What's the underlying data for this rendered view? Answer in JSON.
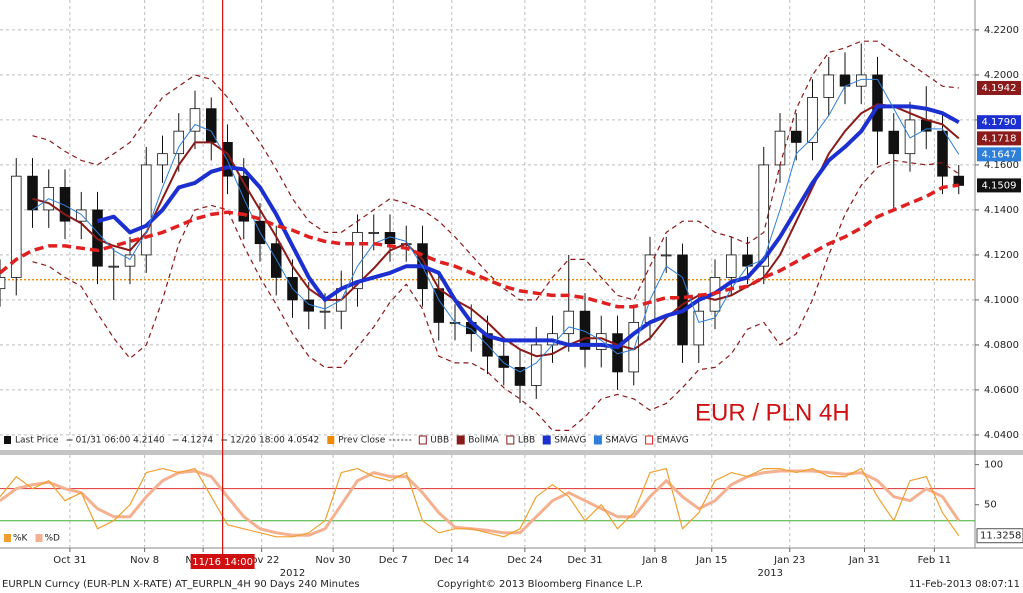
{
  "chart_data": [
    {
      "type": "candlestick",
      "name": "Last Price",
      "legend_notes": [
        "01/31 06:00 4.2140",
        "4.1274",
        "12/20 18:00 4.0542"
      ],
      "annotation": "EUR / PLN 4H",
      "x": [
        0,
        1,
        2,
        3,
        4,
        5,
        6,
        7,
        8,
        9,
        10,
        11,
        12,
        13,
        14,
        15,
        16,
        17,
        18,
        19,
        20,
        21,
        22,
        23,
        24,
        25,
        26,
        27,
        28,
        29,
        30,
        31,
        32,
        33,
        34,
        35,
        36,
        37,
        38,
        39,
        40,
        41,
        42,
        43,
        44,
        45,
        46,
        47,
        48,
        49,
        50,
        51,
        52,
        53,
        54,
        55,
        56,
        57,
        58,
        59
      ],
      "open": [
        4.105,
        4.11,
        4.155,
        4.14,
        4.15,
        4.135,
        4.14,
        4.115,
        4.115,
        4.12,
        4.16,
        4.165,
        4.175,
        4.185,
        4.17,
        4.155,
        4.135,
        4.125,
        4.11,
        4.1,
        4.095,
        4.095,
        4.105,
        4.13,
        4.13,
        4.125,
        4.125,
        4.105,
        4.09,
        4.09,
        4.085,
        4.075,
        4.07,
        4.062,
        4.08,
        4.085,
        4.095,
        4.078,
        4.085,
        4.068,
        4.09,
        4.12,
        4.12,
        4.08,
        4.095,
        4.11,
        4.12,
        4.115,
        4.16,
        4.175,
        4.17,
        4.19,
        4.2,
        4.195,
        4.2,
        4.175,
        4.165,
        4.18,
        4.175,
        4.155
      ],
      "high": [
        4.118,
        4.163,
        4.163,
        4.158,
        4.158,
        4.148,
        4.148,
        4.123,
        4.128,
        4.168,
        4.173,
        4.183,
        4.193,
        4.19,
        4.178,
        4.163,
        4.143,
        4.133,
        4.118,
        4.108,
        4.103,
        4.113,
        4.138,
        4.138,
        4.138,
        4.133,
        4.133,
        4.113,
        4.098,
        4.098,
        4.093,
        4.083,
        4.078,
        4.088,
        4.093,
        4.12,
        4.103,
        4.093,
        4.093,
        4.098,
        4.128,
        4.128,
        4.125,
        4.103,
        4.118,
        4.128,
        4.128,
        4.168,
        4.183,
        4.183,
        4.198,
        4.208,
        4.21,
        4.214,
        4.208,
        4.183,
        4.188,
        4.195,
        4.183,
        4.16
      ],
      "low": [
        4.097,
        4.102,
        4.132,
        4.132,
        4.127,
        4.127,
        4.107,
        4.1,
        4.107,
        4.112,
        4.152,
        4.157,
        4.167,
        4.162,
        4.147,
        4.127,
        4.117,
        4.102,
        4.092,
        4.087,
        4.087,
        4.087,
        4.097,
        4.122,
        4.117,
        4.117,
        4.097,
        4.082,
        4.082,
        4.077,
        4.067,
        4.062,
        4.0542,
        4.056,
        4.072,
        4.077,
        4.07,
        4.07,
        4.06,
        4.062,
        4.082,
        4.112,
        4.072,
        4.072,
        4.087,
        4.102,
        4.107,
        4.107,
        4.152,
        4.162,
        4.162,
        4.182,
        4.187,
        4.187,
        4.16,
        4.14,
        4.157,
        4.167,
        4.147,
        4.147
      ],
      "close": [
        4.11,
        4.155,
        4.14,
        4.15,
        4.135,
        4.14,
        4.115,
        4.115,
        4.12,
        4.16,
        4.165,
        4.175,
        4.185,
        4.17,
        4.155,
        4.135,
        4.125,
        4.11,
        4.1,
        4.095,
        4.095,
        4.105,
        4.13,
        4.13,
        4.125,
        4.125,
        4.105,
        4.09,
        4.09,
        4.085,
        4.075,
        4.07,
        4.062,
        4.08,
        4.085,
        4.095,
        4.078,
        4.085,
        4.068,
        4.09,
        4.12,
        4.12,
        4.08,
        4.095,
        4.11,
        4.12,
        4.115,
        4.16,
        4.175,
        4.17,
        4.19,
        4.2,
        4.195,
        4.2,
        4.175,
        4.165,
        4.18,
        4.175,
        4.155,
        4.1509
      ],
      "up_color": "#ffffff",
      "down_color": "#111111",
      "tag": true,
      "tag_color": "#111111",
      "prev_close": {
        "name": "Prev Close",
        "value": 4.109,
        "color": "#f08a00"
      },
      "series": [
        {
          "name": "UBB",
          "color": "#8b1a1a",
          "style": "dashed",
          "width": 1.2,
          "tag": true,
          "values": [
            null,
            null,
            4.173,
            4.171,
            4.166,
            4.162,
            4.16,
            4.165,
            4.17,
            4.18,
            4.19,
            4.195,
            4.2,
            4.198,
            4.19,
            4.18,
            4.17,
            4.158,
            4.145,
            4.135,
            4.13,
            4.13,
            4.135,
            4.14,
            4.145,
            4.143,
            4.14,
            4.135,
            4.128,
            4.12,
            4.112,
            4.105,
            4.1,
            4.1,
            4.11,
            4.118,
            4.118,
            4.11,
            4.102,
            4.1,
            4.115,
            4.13,
            4.135,
            4.135,
            4.13,
            4.128,
            4.125,
            4.13,
            4.16,
            4.185,
            4.2,
            4.21,
            4.212,
            4.215,
            4.215,
            4.21,
            4.205,
            4.2,
            4.195,
            4.1942
          ]
        },
        {
          "name": "BollMA",
          "color": "#8b1a1a",
          "style": "solid",
          "width": 2,
          "tag": true,
          "values": [
            null,
            null,
            4.145,
            4.143,
            4.138,
            4.134,
            4.127,
            4.124,
            4.122,
            4.13,
            4.145,
            4.16,
            4.17,
            4.17,
            4.165,
            4.152,
            4.14,
            4.128,
            4.115,
            4.105,
            4.1,
            4.1,
            4.107,
            4.114,
            4.122,
            4.125,
            4.118,
            4.105,
            4.1,
            4.096,
            4.09,
            4.083,
            4.078,
            4.075,
            4.076,
            4.08,
            4.083,
            4.083,
            4.08,
            4.078,
            4.083,
            4.092,
            4.098,
            4.102,
            4.1,
            4.102,
            4.106,
            4.11,
            4.12,
            4.135,
            4.15,
            4.165,
            4.175,
            4.183,
            4.187,
            4.186,
            4.183,
            4.18,
            4.178,
            4.1718
          ]
        },
        {
          "name": "LBB",
          "color": "#8b1a1a",
          "style": "dashed",
          "width": 1.2,
          "values": [
            null,
            null,
            4.117,
            4.115,
            4.11,
            4.106,
            4.094,
            4.083,
            4.074,
            4.08,
            4.1,
            4.125,
            4.14,
            4.142,
            4.14,
            4.124,
            4.11,
            4.098,
            4.085,
            4.075,
            4.07,
            4.07,
            4.079,
            4.088,
            4.099,
            4.107,
            4.096,
            4.075,
            4.072,
            4.072,
            4.068,
            4.061,
            4.056,
            4.05,
            4.042,
            4.042,
            4.048,
            4.056,
            4.058,
            4.056,
            4.051,
            4.054,
            4.061,
            4.069,
            4.07,
            4.076,
            4.087,
            4.09,
            4.08,
            4.085,
            4.1,
            4.12,
            4.138,
            4.151,
            4.159,
            4.162,
            4.161,
            4.16,
            4.161,
            4.156
          ]
        },
        {
          "name": "SMAVG",
          "color": "#1c2fd0",
          "style": "solid",
          "width": 4,
          "tag": true,
          "tag_label": "4.1790",
          "values": [
            null,
            null,
            null,
            null,
            null,
            null,
            4.135,
            4.137,
            4.13,
            4.133,
            4.14,
            4.15,
            4.152,
            4.157,
            4.159,
            4.158,
            4.15,
            4.138,
            4.124,
            4.11,
            4.1,
            4.105,
            4.108,
            4.11,
            4.112,
            4.115,
            4.115,
            4.112,
            4.1,
            4.09,
            4.084,
            4.082,
            4.082,
            4.082,
            4.082,
            4.08,
            4.08,
            4.08,
            4.079,
            4.085,
            4.09,
            4.093,
            4.095,
            4.1,
            4.103,
            4.108,
            4.11,
            4.118,
            4.128,
            4.14,
            4.152,
            4.162,
            4.168,
            4.175,
            4.186,
            4.186,
            4.186,
            4.185,
            4.183,
            4.179
          ]
        },
        {
          "name": "SMAVG",
          "color": "#2f7fd8",
          "style": "solid",
          "width": 1,
          "tag": true,
          "values": [
            null,
            null,
            4.14,
            4.145,
            4.142,
            4.138,
            4.13,
            4.122,
            4.118,
            4.13,
            4.15,
            4.168,
            4.178,
            4.175,
            4.162,
            4.145,
            4.13,
            4.118,
            4.105,
            4.098,
            4.096,
            4.1,
            4.115,
            4.125,
            4.128,
            4.126,
            4.115,
            4.1,
            4.09,
            4.087,
            4.08,
            4.072,
            4.068,
            4.072,
            4.08,
            4.088,
            4.086,
            4.082,
            4.076,
            4.078,
            4.1,
            4.115,
            4.11,
            4.09,
            4.092,
            4.105,
            4.115,
            4.118,
            4.14,
            4.165,
            4.172,
            4.182,
            4.195,
            4.198,
            4.198,
            4.185,
            4.172,
            4.176,
            4.176,
            4.1647
          ]
        },
        {
          "name": "EMAVG",
          "color": "#e02020",
          "style": "dashed",
          "width": 3.5,
          "values": [
            4.112,
            4.118,
            4.122,
            4.124,
            4.124,
            4.123,
            4.122,
            4.124,
            4.126,
            4.128,
            4.13,
            4.133,
            4.136,
            4.138,
            4.139,
            4.138,
            4.136,
            4.133,
            4.131,
            4.128,
            4.126,
            4.125,
            4.125,
            4.125,
            4.124,
            4.123,
            4.12,
            4.117,
            4.115,
            4.112,
            4.109,
            4.106,
            4.104,
            4.103,
            4.102,
            4.102,
            4.101,
            4.099,
            4.097,
            4.097,
            4.099,
            4.101,
            4.101,
            4.102,
            4.103,
            4.105,
            4.106,
            4.11,
            4.113,
            4.117,
            4.121,
            4.125,
            4.128,
            4.132,
            4.137,
            4.14,
            4.143,
            4.146,
            4.15,
            4.151
          ]
        }
      ],
      "xlim": [
        0,
        60
      ],
      "ylim": [
        4.0333,
        4.2333
      ],
      "yticks": [
        {
          "value": 4.04,
          "label": "4.0400"
        },
        {
          "value": 4.06,
          "label": "4.0600"
        },
        {
          "value": 4.08,
          "label": "4.0800"
        },
        {
          "value": 4.1,
          "label": "4.1000"
        },
        {
          "value": 4.12,
          "label": "4.1200"
        },
        {
          "value": 4.14,
          "label": "4.1400"
        },
        {
          "value": 4.16,
          "label": "4.1600"
        },
        {
          "value": 4.18,
          "label": "4.1800"
        },
        {
          "value": 4.2,
          "label": "4.2000"
        },
        {
          "value": 4.22,
          "label": "4.2200"
        }
      ],
      "xticks": [
        {
          "value": 4.3,
          "label": "Oct 31"
        },
        {
          "value": 8.9,
          "label": "Nov 8"
        },
        {
          "value": 12.5,
          "label": "Nov 15"
        },
        {
          "value": 16.1,
          "label": "Nov 22"
        },
        {
          "value": 20.5,
          "label": "Nov 30"
        },
        {
          "value": 24.2,
          "label": "Dec 7"
        },
        {
          "value": 27.8,
          "label": "Dec 14"
        },
        {
          "value": 32.3,
          "label": "Dec 24"
        },
        {
          "value": 36,
          "label": "Dec 31"
        },
        {
          "value": 40.3,
          "label": "Jan 8"
        },
        {
          "value": 43.8,
          "label": "Jan 15"
        },
        {
          "value": 48.6,
          "label": "Jan 23"
        },
        {
          "value": 53.2,
          "label": "Jan 31"
        },
        {
          "value": 57.5,
          "label": "Feb 11"
        }
      ],
      "year_labels": [
        {
          "value": 18,
          "label": "2012"
        },
        {
          "value": 47.4,
          "label": "2013"
        }
      ],
      "cursor": {
        "x": 13.7,
        "label": "11/16 14:00",
        "color": "#d01010"
      },
      "grid": true
    },
    {
      "type": "line",
      "series": [
        {
          "name": "%K",
          "color": "#f0a030",
          "width": 1.2,
          "tag": true,
          "values": [
            60,
            85,
            70,
            80,
            55,
            65,
            20,
            30,
            50,
            90,
            95,
            90,
            95,
            60,
            25,
            20,
            15,
            10,
            10,
            15,
            30,
            90,
            95,
            85,
            80,
            90,
            30,
            15,
            20,
            20,
            15,
            10,
            20,
            60,
            75,
            60,
            30,
            50,
            20,
            40,
            90,
            95,
            20,
            40,
            80,
            90,
            85,
            95,
            95,
            90,
            95,
            85,
            85,
            95,
            60,
            30,
            80,
            85,
            40,
            11.3258
          ]
        },
        {
          "name": "%D",
          "color": "#f5b090",
          "width": 3,
          "values": [
            55,
            70,
            75,
            78,
            70,
            65,
            45,
            35,
            35,
            60,
            80,
            90,
            92,
            85,
            60,
            35,
            20,
            15,
            12,
            12,
            20,
            50,
            80,
            90,
            85,
            85,
            65,
            40,
            22,
            20,
            18,
            15,
            15,
            35,
            55,
            65,
            55,
            45,
            35,
            35,
            60,
            80,
            60,
            45,
            55,
            75,
            85,
            90,
            92,
            92,
            92,
            90,
            88,
            90,
            80,
            60,
            55,
            70,
            60,
            30
          ]
        }
      ],
      "hlines": [
        {
          "value": 70,
          "color": "#e03030"
        },
        {
          "value": 30,
          "color": "#40b030"
        }
      ],
      "ylim": [
        -4,
        112
      ],
      "yticks": [
        100,
        50
      ],
      "grid": true
    }
  ],
  "footer": {
    "left": "EURPLN Curncy (EUR-PLN X-RATE) AT_EURPLN_4H 90 Days 240 Minutes",
    "center": "Copyright© 2013 Bloomberg Finance L.P.",
    "right": "11-Feb-2013 08:07:11"
  }
}
